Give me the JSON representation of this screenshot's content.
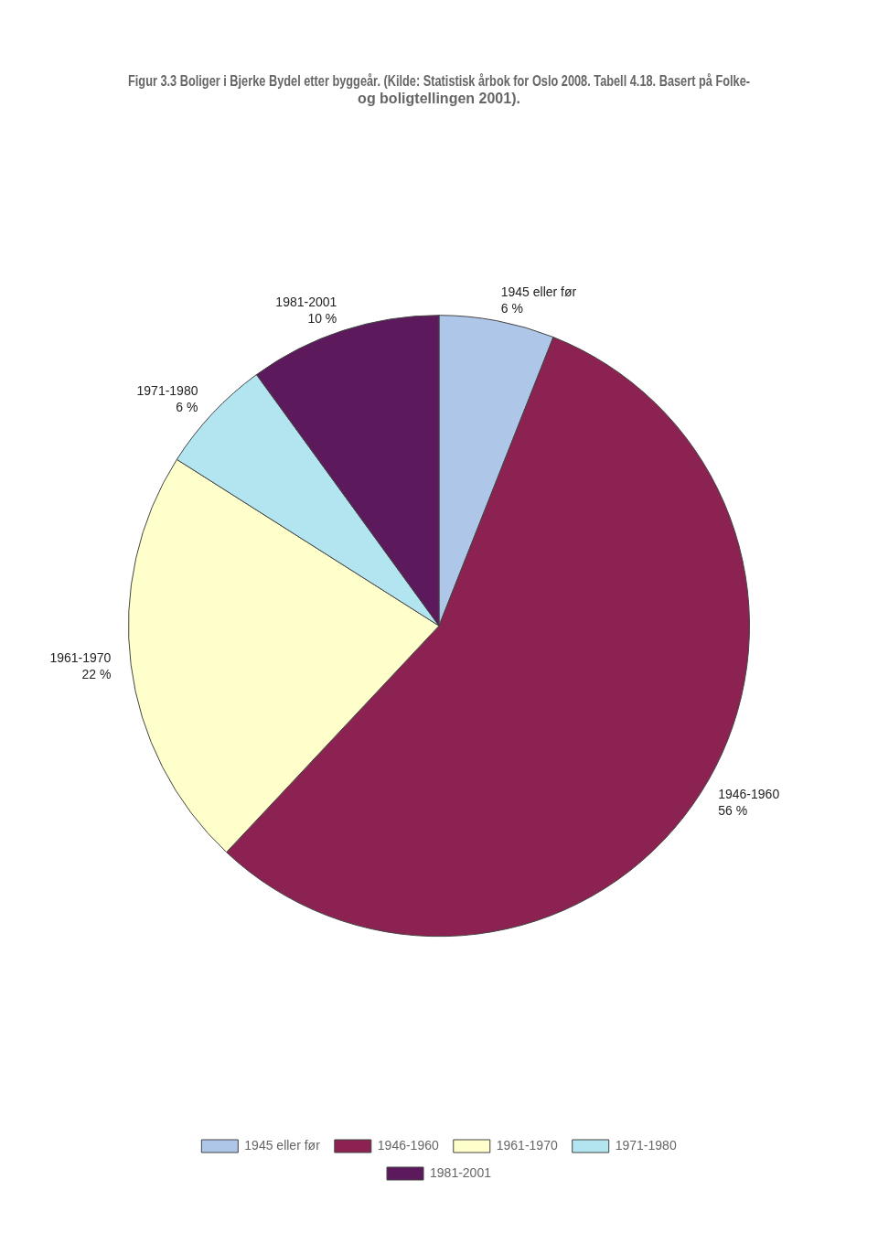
{
  "chart_data": {
    "type": "pie",
    "title": "Figur 3.3 Boliger i Bjerke Bydel etter byggeår. (Kilde: Statistisk årbok for Oslo 2008. Tabell 4.18. Basert på Folke- og boligtellingen 2001).",
    "categories": [
      "1945 eller før",
      "1946-1960",
      "1961-1970",
      "1971-1980",
      "1981-2001"
    ],
    "values": [
      6,
      56,
      22,
      6,
      10
    ],
    "value_labels": [
      "6 %",
      "56 %",
      "22 %",
      "6 %",
      "10 %"
    ],
    "colors": [
      "#aec6e8",
      "#8b2252",
      "#ffffcc",
      "#b3e5f0",
      "#5c1a5c"
    ],
    "data_labels": true,
    "legend": "bottom"
  }
}
